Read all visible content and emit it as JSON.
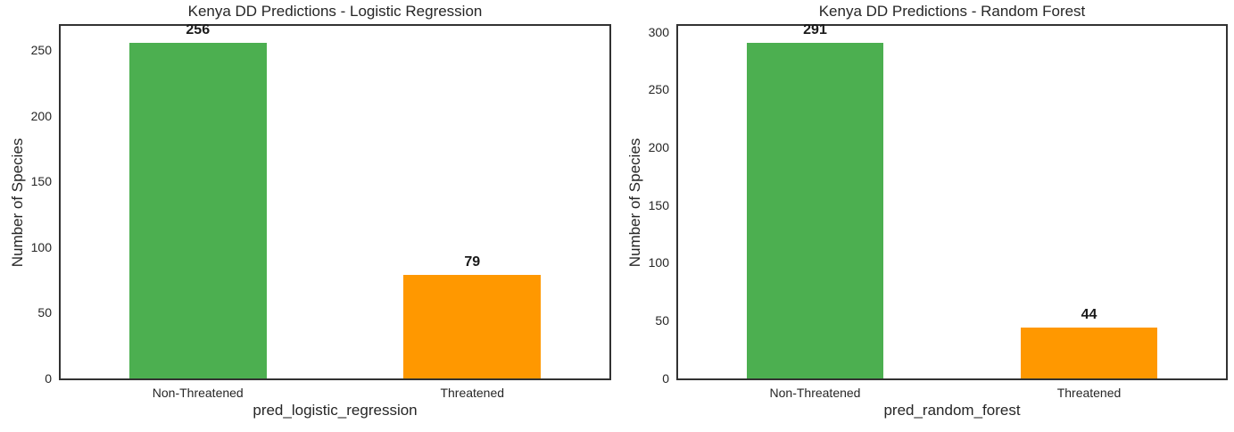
{
  "figure": {
    "background": "#ffffff",
    "text_color": "#262626",
    "spine_color": "#323232",
    "value_label_color": "#1a1a1a"
  },
  "chart_data": [
    {
      "type": "bar",
      "title": "Kenya DD Predictions - Logistic Regression",
      "xlabel": "pred_logistic_regression",
      "ylabel": "Number of Species",
      "categories": [
        "Non-Threatened",
        "Threatened"
      ],
      "values": [
        256,
        79
      ],
      "bar_value_labels": [
        "256",
        "79"
      ],
      "bar_colors": [
        "#4CAF50",
        "#FF9800"
      ],
      "ylim": [
        0,
        268.8
      ],
      "yticks": [
        0,
        50,
        100,
        150,
        200,
        250
      ],
      "grid": false,
      "legend": "none",
      "bar_width_fraction_of_slot": 0.5
    },
    {
      "type": "bar",
      "title": "Kenya DD Predictions - Random Forest",
      "xlabel": "pred_random_forest",
      "ylabel": "Number of Species",
      "categories": [
        "Non-Threatened",
        "Threatened"
      ],
      "values": [
        291,
        44
      ],
      "bar_value_labels": [
        "291",
        "44"
      ],
      "bar_colors": [
        "#4CAF50",
        "#FF9800"
      ],
      "ylim": [
        0,
        305.6
      ],
      "yticks": [
        0,
        50,
        100,
        150,
        200,
        250,
        300
      ],
      "grid": false,
      "legend": "none",
      "bar_width_fraction_of_slot": 0.5
    }
  ]
}
